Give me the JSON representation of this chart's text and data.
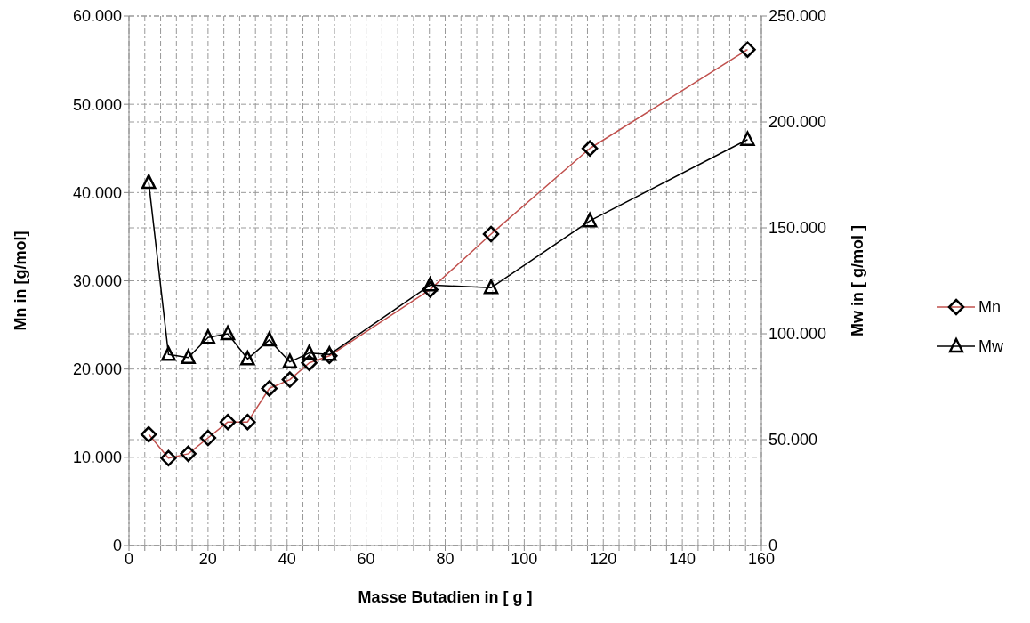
{
  "chart_data": {
    "type": "line",
    "xlabel": "Masse Butadien in [ g ]",
    "ylabel": "Mn in [g/mol]",
    "y2label": "Mw in [ g/mol ]",
    "xlim": [
      0,
      160
    ],
    "xticks": [
      0,
      {
        "value": 4,
        "label": null
      },
      {
        "value": 8,
        "label": null
      },
      {
        "value": 12,
        "label": null
      },
      {
        "value": 16,
        "label": null
      },
      20,
      {
        "value": 24,
        "label": null
      },
      {
        "value": 28,
        "label": null
      },
      {
        "value": 32,
        "label": null
      },
      {
        "value": 36,
        "label": null
      },
      40,
      {
        "value": 44,
        "label": null
      },
      {
        "value": 48,
        "label": null
      },
      {
        "value": 52,
        "label": null
      },
      {
        "value": 56,
        "label": null
      },
      60,
      {
        "value": 64,
        "label": null
      },
      {
        "value": 68,
        "label": null
      },
      {
        "value": 72,
        "label": null
      },
      {
        "value": 76,
        "label": null
      },
      80,
      {
        "value": 84,
        "label": null
      },
      {
        "value": 88,
        "label": null
      },
      {
        "value": 92,
        "label": null
      },
      {
        "value": 96,
        "label": null
      },
      100,
      {
        "value": 104,
        "label": null
      },
      {
        "value": 108,
        "label": null
      },
      {
        "value": 112,
        "label": null
      },
      {
        "value": 116,
        "label": null
      },
      120,
      {
        "value": 124,
        "label": null
      },
      {
        "value": 128,
        "label": null
      },
      {
        "value": 132,
        "label": null
      },
      {
        "value": 136,
        "label": null
      },
      140,
      {
        "value": 144,
        "label": null
      },
      {
        "value": 148,
        "label": null
      },
      {
        "value": 152,
        "label": null
      },
      {
        "value": 156,
        "label": null
      },
      160
    ],
    "ylim": [
      0,
      60000
    ],
    "yticks": [
      0,
      {
        "value": 10000,
        "label": "10.000"
      },
      {
        "value": 20000,
        "label": "20.000"
      },
      {
        "value": 30000,
        "label": "30.000"
      },
      {
        "value": 40000,
        "label": "40.000"
      },
      {
        "value": 50000,
        "label": "50.000"
      },
      {
        "value": 60000,
        "label": "60.000"
      }
    ],
    "y2lim": [
      0,
      250000
    ],
    "y2ticks": [
      0,
      {
        "value": 50000,
        "label": "50.000"
      },
      {
        "value": 100000,
        "label": "100.000"
      },
      {
        "value": 150000,
        "label": "150.000"
      },
      {
        "value": 200000,
        "label": "200.000"
      },
      {
        "value": 250000,
        "label": "250.000"
      }
    ],
    "grid": true,
    "legend": "right",
    "line_style": "solid",
    "x": [
      5,
      10,
      15,
      20,
      25,
      30,
      35.5,
      40.7,
      45.6,
      50.7,
      76.2,
      91.6,
      116.6,
      156.5
    ],
    "series": [
      {
        "name": "Mn",
        "color": "#c0504d",
        "marker": "diamond",
        "values": [
          12600,
          9900,
          10400,
          12200,
          14000,
          14000,
          17800,
          18800,
          20700,
          21500,
          29000,
          35300,
          45000,
          56200
        ]
      },
      {
        "name": "Mw",
        "color": "#000000",
        "marker": "triangle",
        "axis": "y2",
        "values": [
          171400,
          90200,
          88800,
          98200,
          100000,
          88100,
          97100,
          86700,
          90900,
          90200,
          123000,
          121700,
          153300,
          191700
        ]
      }
    ]
  }
}
